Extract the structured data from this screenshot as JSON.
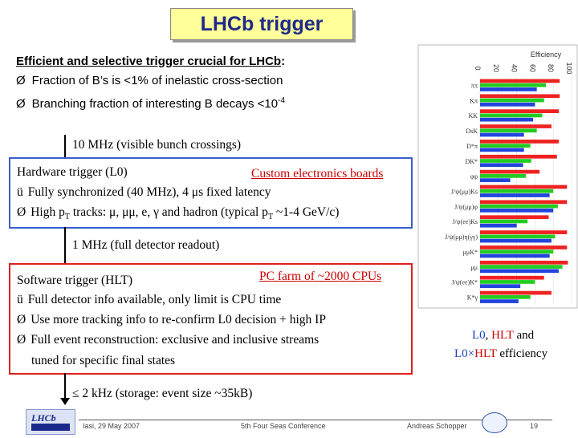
{
  "title": "LHCb trigger",
  "heading": {
    "text": "Efficient and selective trigger crucial for LHCb",
    "colon": ":"
  },
  "bullets": [
    {
      "mark": "Ø",
      "text": "Fraction of B’s is <1% of inelastic cross-section"
    },
    {
      "mark": "Ø",
      "text": "Branching fraction of interesting B decays <10",
      "sup": "-4"
    }
  ],
  "rate1": "10 MHz (visible bunch crossings)",
  "hardware": {
    "title": "Hardware trigger (L0)",
    "link": "Custom electronics boards",
    "line1_mark": "ü",
    "line1": "Fully synchronized (40 MHz), 4 μs fixed latency",
    "line2_mark": "Ø",
    "line2_a": "High p",
    "line2_sub": "T",
    "line2_b": " tracks: μ, μμ, e, γ and hadron  (typical p",
    "line2_sub2": "T",
    "line2_c": " ~1-4 GeV/c)"
  },
  "rate2": "1 MHz (full detector readout)",
  "software": {
    "title": "Software trigger (HLT)",
    "link": "PC farm of ~2000 CPUs",
    "lines": [
      {
        "mark": "ü",
        "text": "Full detector info available, only limit is CPU time"
      },
      {
        "mark": "Ø",
        "text": "Use more tracking info to re-confirm L0 decision + high IP"
      },
      {
        "mark": "Ø",
        "text": "Full event reconstruction: exclusive and inclusive streams"
      },
      {
        "mark": "",
        "text": "tuned for specific final states"
      }
    ]
  },
  "rate3": "≤ 2 kHz (storage: event size ~35kB)",
  "legend": {
    "l0": "L0",
    "sep1": ", ",
    "hlt": "HLT",
    "and": " and",
    "l0x": "L0×",
    "hlt2": "HLT",
    "eff": " efficiency"
  },
  "chart_data": {
    "type": "bar",
    "orientation": "horizontal",
    "title": "Efficiency",
    "xlim": [
      0,
      100
    ],
    "xticks": [
      "0",
      "20",
      "40",
      "60",
      "80",
      "100"
    ],
    "categories": [
      "ππ",
      "Kπ",
      "KK",
      "DsK",
      "D*π",
      "DK*",
      "φφ",
      "J/ψ(μμ)Ks",
      "J/ψ(μμ)φ",
      "J/ψ(ee)Ks",
      "J/ψ(μμ)η(γγ)",
      "μμK*",
      "μμ",
      "J/ψ(ee)K*",
      "K*γ"
    ],
    "series": [
      {
        "name": "L0",
        "color": "#ee2222",
        "values": [
          87,
          87,
          86,
          78,
          86,
          84,
          65,
          95,
          95,
          75,
          95,
          95,
          96,
          70,
          78
        ]
      },
      {
        "name": "HLT",
        "color": "#22cc22",
        "values": [
          72,
          70,
          68,
          62,
          55,
          56,
          50,
          80,
          85,
          52,
          82,
          80,
          90,
          60,
          55
        ]
      },
      {
        "name": "L0×HLT",
        "color": "#2244dd",
        "values": [
          62,
          60,
          58,
          48,
          48,
          47,
          33,
          76,
          80,
          40,
          78,
          76,
          86,
          44,
          42
        ]
      }
    ],
    "colors": {
      "l0": "#ee2222",
      "hlt": "#22cc22",
      "both": "#2244dd"
    }
  },
  "footer": {
    "place_date": "Iasi, 29 May 2007",
    "conference": "5th Four Seas Conference",
    "author": "Andreas Schopper",
    "page": "19"
  }
}
